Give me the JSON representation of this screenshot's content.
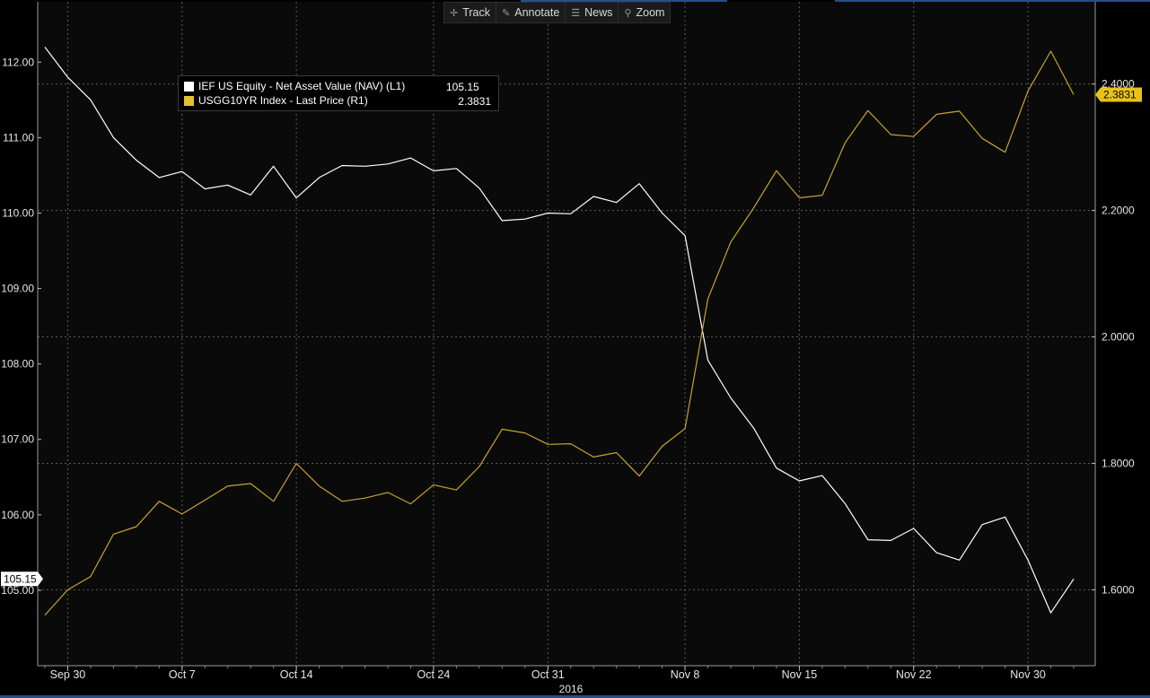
{
  "toolbar": {
    "track": "Track",
    "annotate": "Annotate",
    "news": "News",
    "zoom": "Zoom"
  },
  "legend": {
    "series1_label": "IEF US Equity - Net Asset Value (NAV) (L1)",
    "series1_value": "105.15",
    "series2_label": "USGG10YR Index - Last Price (R1)",
    "series2_value": "2.3831"
  },
  "colors": {
    "background": "#000000",
    "grid": "#5a5a5a",
    "series1": "#ffffff",
    "series2": "#c9a52a",
    "right_tag": "#e8c21a"
  },
  "chart_data": {
    "type": "line",
    "x": [
      "Sep 29",
      "Sep 30",
      "Oct 3",
      "Oct 4",
      "Oct 5",
      "Oct 6",
      "Oct 7",
      "Oct 10",
      "Oct 11",
      "Oct 12",
      "Oct 13",
      "Oct 14",
      "Oct 17",
      "Oct 18",
      "Oct 19",
      "Oct 20",
      "Oct 21",
      "Oct 24",
      "Oct 25",
      "Oct 26",
      "Oct 27",
      "Oct 28",
      "Oct 31",
      "Nov 1",
      "Nov 2",
      "Nov 3",
      "Nov 4",
      "Nov 7",
      "Nov 8",
      "Nov 9",
      "Nov 10",
      "Nov 11",
      "Nov 14",
      "Nov 15",
      "Nov 16",
      "Nov 17",
      "Nov 18",
      "Nov 21",
      "Nov 22",
      "Nov 23",
      "Nov 25",
      "Nov 28",
      "Nov 29",
      "Nov 30",
      "Dec 1",
      "Dec 2"
    ],
    "x_tick_labels": [
      {
        "label": "Sep 30",
        "index": 1
      },
      {
        "label": "Oct 7",
        "index": 6
      },
      {
        "label": "Oct 14",
        "index": 11
      },
      {
        "label": "Oct 24",
        "index": 17
      },
      {
        "label": "Oct 31",
        "index": 22
      },
      {
        "label": "Nov 8",
        "index": 28
      },
      {
        "label": "Nov 15",
        "index": 33
      },
      {
        "label": "Nov 22",
        "index": 38
      },
      {
        "label": "Nov 30",
        "index": 43
      }
    ],
    "xlabel": "2016",
    "series": [
      {
        "axis": "left",
        "values": [
          112.2,
          111.8,
          111.5,
          111.0,
          110.7,
          110.47,
          110.55,
          110.32,
          110.37,
          110.24,
          110.62,
          110.2,
          110.47,
          110.63,
          110.62,
          110.65,
          110.73,
          110.56,
          110.59,
          110.33,
          109.9,
          109.92,
          110.0,
          109.99,
          110.22,
          110.14,
          110.39,
          110.0,
          109.7,
          108.05,
          107.55,
          107.15,
          106.62,
          106.45,
          106.52,
          106.15,
          105.67,
          105.66,
          105.82,
          105.5,
          105.4,
          105.87,
          105.97,
          105.4,
          104.7,
          105.15
        ]
      },
      {
        "axis": "right",
        "values": [
          1.56,
          1.6,
          1.621,
          1.688,
          1.7,
          1.74,
          1.72,
          1.742,
          1.764,
          1.768,
          1.74,
          1.8,
          1.764,
          1.74,
          1.745,
          1.754,
          1.736,
          1.766,
          1.758,
          1.795,
          1.854,
          1.848,
          1.83,
          1.831,
          1.81,
          1.817,
          1.78,
          1.827,
          1.855,
          2.06,
          2.15,
          2.204,
          2.263,
          2.22,
          2.224,
          2.307,
          2.358,
          2.32,
          2.317,
          2.352,
          2.357,
          2.314,
          2.292,
          2.389,
          2.452,
          2.3831
        ]
      }
    ],
    "left_axis": {
      "ylim": [
        104.0,
        112.8
      ],
      "ticks": [
        "105.00",
        "106.00",
        "107.00",
        "108.00",
        "109.00",
        "110.00",
        "111.00",
        "112.00"
      ],
      "last_value": "105.15"
    },
    "right_axis": {
      "ylim": [
        1.48,
        2.53
      ],
      "ticks": [
        "1.6000",
        "1.8000",
        "2.0000",
        "2.2000",
        "2.4000"
      ],
      "last_value": "2.3831"
    },
    "grid": true,
    "legend_position": "top-left"
  }
}
